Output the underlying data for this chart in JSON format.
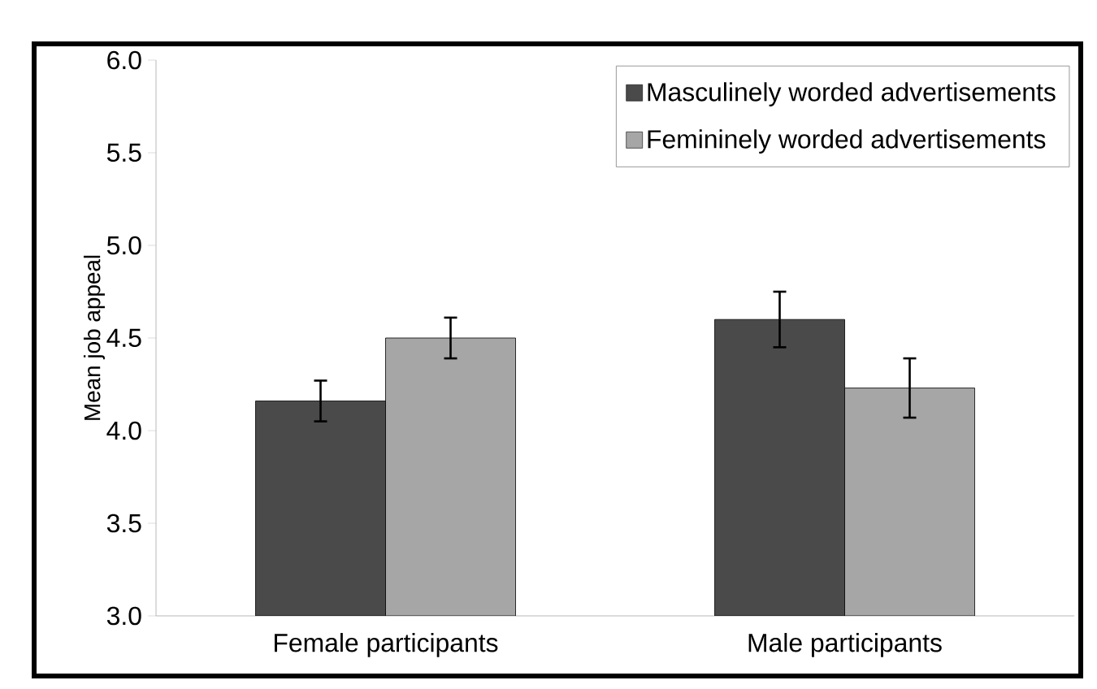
{
  "chart_data": {
    "type": "bar",
    "ylabel": "Mean job appeal",
    "categories": [
      "Female participants",
      "Male participants"
    ],
    "series": [
      {
        "name": "Masculinely worded advertisements",
        "color": "#4a4a4a",
        "values": [
          4.16,
          4.6
        ],
        "errors": [
          0.11,
          0.15
        ]
      },
      {
        "name": "Femininely worded advertisements",
        "color": "#a6a6a6",
        "values": [
          4.5,
          4.23
        ],
        "errors": [
          0.11,
          0.16
        ]
      }
    ],
    "ylim": [
      3.0,
      6.0
    ],
    "yticks": [
      {
        "value": 3.0,
        "label": "3.0"
      },
      3.5,
      {
        "value": 4.0,
        "label": "4.0"
      },
      4.5,
      {
        "value": 5.0,
        "label": "5.0"
      },
      5.5,
      {
        "value": 6.0,
        "label": "6.0"
      }
    ],
    "legend": "top right"
  }
}
